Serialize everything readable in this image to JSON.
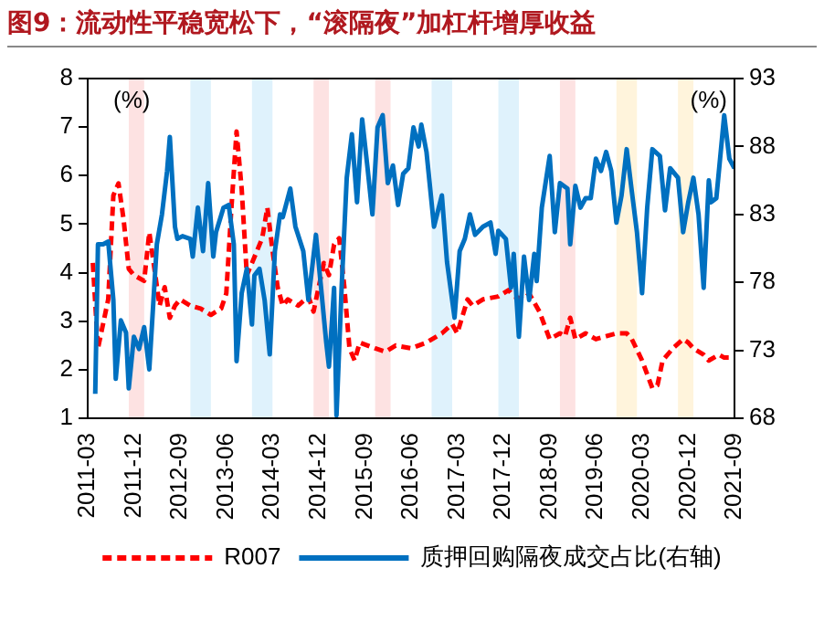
{
  "chart_data": {
    "type": "line",
    "title": "图9：流动性平稳宽松下，“滚隔夜”加杠杆增厚收益",
    "ylabel": "(%)",
    "y2label": "(%)",
    "xlim": [
      "2011-03",
      "2021-09"
    ],
    "xticks": [
      "2011-03",
      "2011-12",
      "2012-09",
      "2013-06",
      "2014-03",
      "2014-12",
      "2015-09",
      "2016-06",
      "2017-03",
      "2017-12",
      "2018-09",
      "2019-06",
      "2020-03",
      "2020-12",
      "2021-09"
    ],
    "ylim": [
      1,
      8
    ],
    "yticks": [
      1,
      2,
      3,
      4,
      5,
      6,
      7,
      8
    ],
    "y2lim": [
      68,
      93
    ],
    "y2ticks": [
      68,
      73,
      78,
      83,
      88,
      93
    ],
    "legend": "bottom",
    "bands": [
      {
        "axis": "x",
        "from": "2011-11",
        "to": "2012-02",
        "color": "#fde2e2"
      },
      {
        "axis": "x",
        "from": "2012-11",
        "to": "2013-03",
        "color": "#dff2fc"
      },
      {
        "axis": "x",
        "from": "2013-11",
        "to": "2014-03",
        "color": "#dff2fc"
      },
      {
        "axis": "x",
        "from": "2014-11",
        "to": "2015-02",
        "color": "#fde2e2"
      },
      {
        "axis": "x",
        "from": "2015-11",
        "to": "2016-02",
        "color": "#fde2e2"
      },
      {
        "axis": "x",
        "from": "2016-10",
        "to": "2017-02",
        "color": "#dff2fc"
      },
      {
        "axis": "x",
        "from": "2017-11",
        "to": "2018-03",
        "color": "#dff2fc"
      },
      {
        "axis": "x",
        "from": "2018-11",
        "to": "2019-02",
        "color": "#fde2e2"
      },
      {
        "axis": "x",
        "from": "2019-10",
        "to": "2020-02",
        "color": "#fff4dc"
      },
      {
        "axis": "x",
        "from": "2020-10",
        "to": "2021-01",
        "color": "#fff4dc"
      }
    ],
    "series": [
      {
        "name": "R007",
        "color": "#ff0000",
        "line_style": "dashed",
        "x": [
          "2011-04",
          "2011-05",
          "2011-07",
          "2011-08",
          "2011-09",
          "2011-10",
          "2011-11",
          "2011-12",
          "2012-02",
          "2012-03",
          "2012-04",
          "2012-05",
          "2012-06",
          "2012-07",
          "2012-08",
          "2012-09",
          "2012-11",
          "2013-01",
          "2013-03",
          "2013-05",
          "2013-06",
          "2013-07",
          "2013-08",
          "2013-09",
          "2013-10",
          "2013-11",
          "2014-01",
          "2014-02",
          "2014-03",
          "2014-04",
          "2014-05",
          "2014-06",
          "2014-08",
          "2014-10",
          "2014-11",
          "2015-01",
          "2015-02",
          "2015-03",
          "2015-04",
          "2015-05",
          "2015-06",
          "2015-07",
          "2015-08",
          "2015-11",
          "2016-01",
          "2016-03",
          "2016-06",
          "2016-09",
          "2016-12",
          "2017-02",
          "2017-03",
          "2017-05",
          "2017-06",
          "2017-08",
          "2017-11",
          "2018-01",
          "2018-02",
          "2018-04",
          "2018-05",
          "2018-07",
          "2018-09",
          "2018-11",
          "2018-12",
          "2019-01",
          "2019-02",
          "2019-04",
          "2019-06",
          "2019-08",
          "2019-10",
          "2019-12",
          "2020-01",
          "2020-03",
          "2020-05",
          "2020-06",
          "2020-07",
          "2020-09",
          "2020-11",
          "2020-12",
          "2021-01",
          "2021-03",
          "2021-04",
          "2021-06",
          "2021-07",
          "2021-09"
        ],
        "values": [
          4.2,
          2.44,
          3.45,
          5.59,
          5.84,
          5.09,
          4.08,
          3.95,
          3.83,
          4.83,
          4.08,
          3.32,
          3.7,
          3.07,
          3.32,
          3.45,
          3.32,
          3.26,
          3.13,
          3.26,
          3.57,
          5.34,
          6.91,
          5.72,
          3.95,
          4.2,
          4.71,
          5.34,
          4.46,
          3.7,
          3.32,
          3.45,
          3.32,
          3.51,
          3.2,
          4.2,
          3.95,
          4.58,
          4.71,
          3.7,
          2.44,
          2.19,
          2.56,
          2.44,
          2.37,
          2.5,
          2.44,
          2.56,
          2.75,
          2.94,
          2.75,
          3.45,
          3.32,
          3.45,
          3.51,
          3.64,
          3.51,
          3.45,
          3.57,
          3.2,
          2.63,
          2.75,
          2.69,
          3.07,
          2.63,
          2.75,
          2.63,
          2.69,
          2.75,
          2.75,
          2.63,
          2.19,
          1.62,
          1.68,
          2.19,
          2.44,
          2.63,
          2.56,
          2.44,
          2.31,
          2.19,
          2.31,
          2.25,
          2.25
        ]
      },
      {
        "name": "质押回购隔夜成交占比(右轴)",
        "color": "#0070c0",
        "line_style": "solid",
        "axis": "y2",
        "x": [
          "2011-04-15",
          "2011-05-01",
          "2011-06-01",
          "2011-07-01",
          "2011-08-01",
          "2011-08-15",
          "2011-09-15",
          "2011-10-15",
          "2011-11-01",
          "2011-12-01",
          "2012-01-01",
          "2012-02-01",
          "2012-03-01",
          "2012-04-15",
          "2012-05-15",
          "2012-06-15",
          "2012-07-01",
          "2012-08-01",
          "2012-08-15",
          "2012-09-15",
          "2012-11-01",
          "2012-11-15",
          "2012-12-15",
          "2013-01-15",
          "2013-02-15",
          "2013-03-15",
          "2013-04-01",
          "2013-05-15",
          "2013-06-15",
          "2013-07-15",
          "2013-08-01",
          "2013-09-01",
          "2013-10-01",
          "2013-11-01",
          "2013-11-15",
          "2013-12-15",
          "2014-01-15",
          "2014-02-15",
          "2014-03-15",
          "2014-04-15",
          "2014-05-01",
          "2014-06-15",
          "2014-07-15",
          "2014-09-01",
          "2014-10-01",
          "2014-11-15",
          "2014-12-15",
          "2015-01-15",
          "2015-02-01",
          "2015-03-01",
          "2015-03-15",
          "2015-04-15",
          "2015-05-15",
          "2015-06-15",
          "2015-07-15",
          "2015-08-15",
          "2015-09-15",
          "2015-10-15",
          "2015-11-15",
          "2015-12-15",
          "2016-01-15",
          "2016-02-15",
          "2016-03-15",
          "2016-04-15",
          "2016-05-15",
          "2016-06-15",
          "2016-07-15",
          "2016-08-01",
          "2016-09-01",
          "2016-10-15",
          "2016-12-01",
          "2017-01-01",
          "2017-02-15",
          "2017-03-15",
          "2017-04-15",
          "2017-05-15",
          "2017-06-15",
          "2017-08-01",
          "2017-09-15",
          "2017-10-15",
          "2017-11-01",
          "2017-12-15",
          "2018-01-15",
          "2018-02-01",
          "2018-03-01",
          "2018-04-01",
          "2018-05-01",
          "2018-06-01",
          "2018-06-15",
          "2018-07-15",
          "2018-09-01",
          "2018-10-01",
          "2018-11-01",
          "2018-12-15",
          "2019-01-01",
          "2019-02-01",
          "2019-03-01",
          "2019-04-01",
          "2019-05-01",
          "2019-06-01",
          "2019-07-01",
          "2019-08-01",
          "2019-09-01",
          "2019-10-01",
          "2019-11-01",
          "2019-12-01",
          "2020-01-01",
          "2020-02-01",
          "2020-03-01",
          "2020-04-01",
          "2020-05-01",
          "2020-06-15",
          "2020-07-15",
          "2020-08-15",
          "2020-10-01",
          "2020-11-01",
          "2020-12-01",
          "2021-01-01",
          "2021-02-01",
          "2021-03-01",
          "2021-04-01",
          "2021-04-15",
          "2021-05-15",
          "2021-07-01",
          "2021-08-01",
          "2021-09-01"
        ],
        "values": [
          69.8,
          80.8,
          80.8,
          81.0,
          76.7,
          70.9,
          75.2,
          74.3,
          70.2,
          74.0,
          73.1,
          74.7,
          71.6,
          80.8,
          83.0,
          86.2,
          88.7,
          82.1,
          81.2,
          81.4,
          81.2,
          79.9,
          83.5,
          80.3,
          85.3,
          79.9,
          81.7,
          83.5,
          83.7,
          80.8,
          72.2,
          77.2,
          79.0,
          74.9,
          78.5,
          79.0,
          76.7,
          72.7,
          80.3,
          83.0,
          82.8,
          84.9,
          82.1,
          80.3,
          76.7,
          81.5,
          77.6,
          73.6,
          71.8,
          77.6,
          68.2,
          77.6,
          85.7,
          88.9,
          83.9,
          90.0,
          86.6,
          83.0,
          89.4,
          90.3,
          85.3,
          86.6,
          83.7,
          86.0,
          86.4,
          89.4,
          88.0,
          89.6,
          87.6,
          82.1,
          84.4,
          79.5,
          75.4,
          80.3,
          81.2,
          83.0,
          81.5,
          82.1,
          82.4,
          80.1,
          81.8,
          81.2,
          77.6,
          80.1,
          74.0,
          79.9,
          76.7,
          80.1,
          78.1,
          83.5,
          87.3,
          81.7,
          85.3,
          84.9,
          80.8,
          85.1,
          83.5,
          84.2,
          84.2,
          87.1,
          86.2,
          87.6,
          86.2,
          82.4,
          84.4,
          87.8,
          84.7,
          81.7,
          77.2,
          83.5,
          87.8,
          87.3,
          83.3,
          86.4,
          85.7,
          81.7,
          83.9,
          85.7,
          83.0,
          77.6,
          85.5,
          83.9,
          84.2,
          90.3,
          87.1,
          86.4
        ]
      }
    ]
  }
}
